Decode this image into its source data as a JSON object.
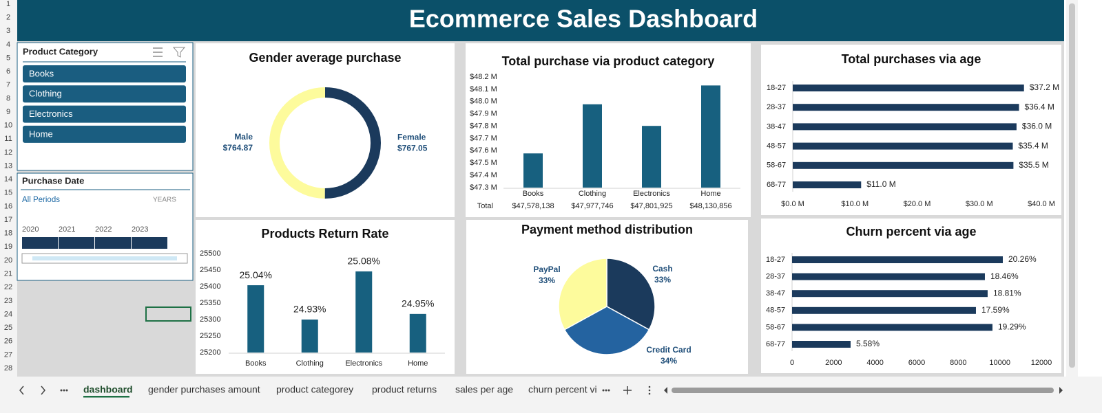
{
  "header": {
    "title": "Ecommerce Sales Dashboard"
  },
  "row_numbers": [
    1,
    2,
    3,
    4,
    5,
    6,
    7,
    8,
    9,
    10,
    11,
    12,
    13,
    14,
    15,
    16,
    17,
    18,
    19,
    20,
    21,
    22,
    23,
    24,
    25,
    26,
    27,
    28
  ],
  "slicers": [
    {
      "title": "Product Category",
      "items": [
        "Books",
        "Clothing",
        "Electronics",
        "Home"
      ]
    },
    {
      "title": "Purchase Date",
      "period": "All Periods",
      "level": "YEARS",
      "years": [
        2020,
        2021,
        2022,
        2023
      ]
    }
  ],
  "chart_data": [
    {
      "type": "donut",
      "title": "Gender average purchase",
      "categories": [
        "Female",
        "Male"
      ],
      "values": [
        767.05,
        764.87
      ],
      "value_labels": [
        "$767.05",
        "$764.87"
      ],
      "colors": [
        "#1b3a5c",
        "#fdfb9c"
      ],
      "label_color": "#1f4e79"
    },
    {
      "type": "bar",
      "title": "Total purchase via product category",
      "categories": [
        "Books",
        "Clothing",
        "Electronics",
        "Home"
      ],
      "values": [
        47578138,
        47977746,
        47801925,
        48130856
      ],
      "value_labels": [
        "$47,578,138",
        "$47,977,746",
        "$47,801,925",
        "$48,130,856"
      ],
      "table_label": "Total",
      "color": "#17607f",
      "ylim": [
        47300000,
        48200000
      ],
      "yticks": [
        {
          "value": 47300000,
          "label": "$47.3 M"
        },
        {
          "value": 47400000,
          "label": "$47.4 M"
        },
        {
          "value": 47500000,
          "label": "$47.5 M"
        },
        {
          "value": 47600000,
          "label": "$47.6 M"
        },
        {
          "value": 47700000,
          "label": "$47.7 M"
        },
        {
          "value": 47800000,
          "label": "$47.8 M"
        },
        {
          "value": 47900000,
          "label": "$47.9 M"
        },
        {
          "value": 48000000,
          "label": "$48.0 M"
        },
        {
          "value": 48100000,
          "label": "$48.1 M"
        },
        {
          "value": 48200000,
          "label": "$48.2 M"
        }
      ]
    },
    {
      "type": "hbar",
      "title": "Total purchases via age",
      "categories": [
        "18-27",
        "28-37",
        "38-47",
        "48-57",
        "58-67",
        "68-77"
      ],
      "values": [
        37200000,
        36400000,
        36000000,
        35400000,
        35500000,
        11000000
      ],
      "value_labels": [
        "$37.2 M",
        "$36.4 M",
        "$36.0 M",
        "$35.4 M",
        "$35.5 M",
        "$11.0 M"
      ],
      "color": "#1b3a5c",
      "xlim": [
        0,
        40000000
      ],
      "xticks": [
        {
          "value": 0,
          "label": "$0.0 M"
        },
        {
          "value": 10000000,
          "label": "$10.0 M"
        },
        {
          "value": 20000000,
          "label": "$20.0 M"
        },
        {
          "value": 30000000,
          "label": "$30.0 M"
        },
        {
          "value": 40000000,
          "label": "$40.0 M"
        }
      ]
    },
    {
      "type": "bar",
      "title": "Products Return Rate",
      "categories": [
        "Books",
        "Clothing",
        "Electronics",
        "Home"
      ],
      "values": [
        25404,
        25300,
        25446,
        25317
      ],
      "percent_labels": [
        "25.04%",
        "24.93%",
        "25.08%",
        "24.95%"
      ],
      "color": "#17607f",
      "ylim": [
        25200,
        25500
      ],
      "yticks": [
        25200,
        25250,
        25300,
        25350,
        25400,
        25450,
        25500
      ]
    },
    {
      "type": "pie",
      "title": "Payment method distribution",
      "categories": [
        "Cash",
        "Credit Card",
        "PayPal"
      ],
      "values": [
        33,
        34,
        33
      ],
      "value_labels": [
        "33%",
        "34%",
        "33%"
      ],
      "colors": [
        "#1b3a5c",
        "#2463a0",
        "#fdfb9c"
      ],
      "label_color": "#1f4e79"
    },
    {
      "type": "hbar",
      "title": "Churn percent via age",
      "categories": [
        "18-27",
        "28-37",
        "38-47",
        "48-57",
        "58-67",
        "68-77"
      ],
      "values": [
        10143,
        9281,
        9413,
        8850,
        9645,
        2817
      ],
      "percent_labels": [
        "20.26%",
        "18.46%",
        "18.81%",
        "17.59%",
        "19.29%",
        "5.58%"
      ],
      "color": "#1b3a5c",
      "xlim": [
        0,
        12000
      ],
      "xticks": [
        0,
        2000,
        4000,
        6000,
        8000,
        10000,
        12000
      ]
    }
  ],
  "sheet_tabs": [
    "dashboard",
    "gender purchases amount",
    "product categorey",
    "product returns",
    "sales per age",
    "churn percent vi"
  ]
}
